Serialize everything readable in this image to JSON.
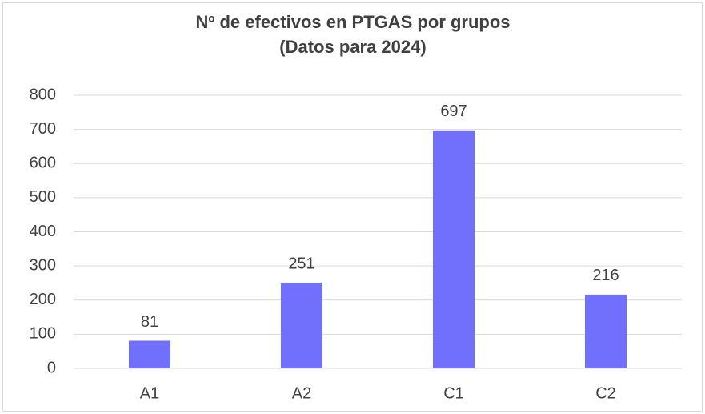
{
  "chart_data": {
    "type": "bar",
    "title": "Nº de efectivos en PTGAS por grupos",
    "subtitle": "(Datos para 2024)",
    "categories": [
      "A1",
      "A2",
      "C1",
      "C2"
    ],
    "values": [
      81,
      251,
      697,
      216
    ],
    "color": "#7070fc",
    "ylim": [
      0,
      800
    ],
    "yticks": [
      0,
      100,
      200,
      300,
      400,
      500,
      600,
      700,
      800
    ],
    "grid": true
  }
}
